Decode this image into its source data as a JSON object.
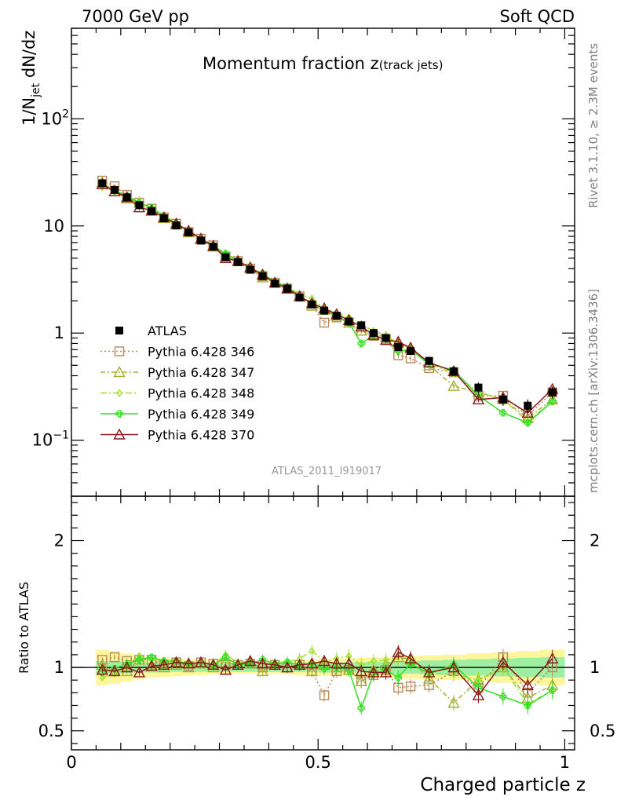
{
  "header": {
    "left": "7000 GeV pp",
    "right": "Soft QCD"
  },
  "side_text": {
    "top": "Rivet 3.1.10, ≥ 2.3M events",
    "bottom": "mcplots.cern.ch [arXiv:1306.3436]"
  },
  "chart_data": [
    {
      "type": "line",
      "title_main": "Momentum fraction z",
      "title_sub": "(track jets)",
      "ylabel_lead": "1/N",
      "ylabel_sub": "jet",
      "ylabel_tail": " dN/dz",
      "analysis_tag": "ATLAS_2011_I919017",
      "yscale": "log",
      "ylim": [
        0.03,
        700
      ],
      "xlim": [
        0,
        1.02
      ],
      "yticks": [
        {
          "value": 0.1,
          "base": "10",
          "exp": "−1"
        },
        {
          "value": 1,
          "base": "1",
          "exp": ""
        },
        {
          "value": 10,
          "base": "10",
          "exp": ""
        },
        {
          "value": 100,
          "base": "10",
          "exp": "2"
        }
      ],
      "legend_position": "left-middle",
      "x": [
        0.0625,
        0.0875,
        0.1125,
        0.1375,
        0.1625,
        0.1875,
        0.2125,
        0.2375,
        0.2625,
        0.2875,
        0.3125,
        0.3375,
        0.3625,
        0.3875,
        0.4125,
        0.4375,
        0.4625,
        0.4875,
        0.5125,
        0.5375,
        0.5625,
        0.5875,
        0.6125,
        0.6375,
        0.6625,
        0.6875,
        0.725,
        0.775,
        0.825,
        0.875,
        0.925,
        0.975
      ],
      "reference": {
        "name": "ATLAS",
        "color": "#000000",
        "values": [
          25.0,
          21.7,
          18.5,
          15.6,
          13.7,
          11.8,
          10.1,
          8.7,
          7.3,
          6.4,
          5.1,
          4.6,
          3.9,
          3.4,
          2.9,
          2.6,
          2.15,
          1.85,
          1.62,
          1.45,
          1.28,
          1.18,
          1.0,
          0.9,
          0.74,
          0.68,
          0.55,
          0.44,
          0.31,
          0.24,
          0.21,
          0.28
        ],
        "errors": [
          1.2,
          1.0,
          0.8,
          0.6,
          0.5,
          0.45,
          0.4,
          0.35,
          0.3,
          0.25,
          0.2,
          0.2,
          0.15,
          0.15,
          0.12,
          0.1,
          0.1,
          0.08,
          0.08,
          0.07,
          0.07,
          0.06,
          0.06,
          0.05,
          0.05,
          0.05,
          0.04,
          0.04,
          0.035,
          0.03,
          0.03,
          0.035
        ]
      },
      "series": [
        {
          "name": "Pythia 6.428 346",
          "color": "#b5895a",
          "marker": "square",
          "dash": "2,3",
          "values": [
            26.5,
            23.5,
            19.5,
            16.5,
            14.5,
            12.0,
            10.5,
            8.8,
            7.6,
            6.6,
            5.2,
            4.7,
            4.0,
            3.4,
            2.95,
            2.6,
            2.2,
            1.8,
            1.25,
            1.4,
            1.25,
            1.05,
            0.94,
            0.88,
            0.62,
            0.58,
            0.47,
            0.43,
            0.26,
            0.26,
            0.17,
            0.28
          ]
        },
        {
          "name": "Pythia 6.428 347",
          "color": "#a5b030",
          "marker": "triangle",
          "dash": "6,3,2,3",
          "values": [
            25.5,
            21.0,
            18.0,
            16.5,
            14.0,
            11.8,
            10.3,
            8.7,
            7.5,
            6.4,
            5.3,
            4.7,
            4.0,
            3.3,
            2.95,
            2.6,
            2.2,
            1.8,
            1.65,
            1.45,
            1.25,
            1.05,
            0.98,
            0.92,
            0.8,
            0.72,
            0.5,
            0.32,
            0.28,
            0.24,
            0.16,
            0.24
          ]
        },
        {
          "name": "Pythia 6.428 348",
          "color": "#9ee02e",
          "marker": "diamond",
          "dash": "8,3,2,3",
          "values": [
            23.0,
            20.5,
            18.5,
            17.0,
            14.5,
            12.3,
            10.5,
            9.0,
            7.6,
            6.5,
            5.6,
            4.8,
            4.1,
            3.5,
            3.0,
            2.7,
            2.3,
            2.1,
            1.7,
            1.55,
            1.4,
            1.2,
            1.05,
            0.95,
            0.8,
            0.73,
            0.52,
            0.42,
            0.28,
            0.24,
            0.15,
            0.23
          ]
        },
        {
          "name": "Pythia 6.428 349",
          "color": "#33dd22",
          "marker": "plus",
          "dash": "",
          "values": [
            24.0,
            21.5,
            19.0,
            16.5,
            14.8,
            12.4,
            10.6,
            9.0,
            7.6,
            6.5,
            5.5,
            4.7,
            4.0,
            3.6,
            3.0,
            2.7,
            2.2,
            1.9,
            1.6,
            1.45,
            1.25,
            0.8,
            0.95,
            0.88,
            0.68,
            0.7,
            0.52,
            0.45,
            0.26,
            0.18,
            0.145,
            0.23
          ]
        },
        {
          "name": "Pythia 6.428 370",
          "color": "#8b1a1a",
          "marker": "triangle",
          "dash": "",
          "values": [
            24.5,
            21.0,
            18.5,
            14.9,
            13.9,
            12.0,
            10.5,
            9.0,
            7.6,
            6.5,
            5.0,
            4.7,
            4.1,
            3.5,
            2.95,
            2.6,
            2.2,
            1.9,
            1.7,
            1.5,
            1.32,
            1.15,
            0.96,
            0.86,
            0.83,
            0.73,
            0.53,
            0.44,
            0.24,
            0.25,
            0.18,
            0.3
          ]
        }
      ]
    },
    {
      "type": "line",
      "ylabel": "Ratio to ATLAS",
      "ylim": [
        0.35,
        2.35
      ],
      "xlim": [
        0,
        1.02
      ],
      "xlabel": "Charged particle z",
      "yticks": [
        {
          "value": 0.5,
          "label": "0.5"
        },
        {
          "value": 1,
          "label": "1"
        },
        {
          "value": 2,
          "label": "2"
        }
      ],
      "xticks": [
        {
          "value": 0,
          "label": "0"
        },
        {
          "value": 0.5,
          "label": "0.5"
        },
        {
          "value": 1,
          "label": "1"
        }
      ],
      "band_inner_halfwidth": [
        0.05,
        0.05,
        0.045,
        0.04,
        0.04,
        0.038,
        0.035,
        0.035,
        0.035,
        0.035,
        0.035,
        0.035,
        0.035,
        0.035,
        0.035,
        0.035,
        0.035,
        0.035,
        0.04,
        0.04,
        0.04,
        0.04,
        0.045,
        0.045,
        0.05,
        0.05,
        0.055,
        0.06,
        0.065,
        0.07,
        0.075,
        0.08
      ],
      "band_outer_halfwidth": [
        0.14,
        0.13,
        0.11,
        0.09,
        0.08,
        0.075,
        0.07,
        0.065,
        0.06,
        0.055,
        0.05,
        0.05,
        0.05,
        0.05,
        0.05,
        0.055,
        0.06,
        0.06,
        0.065,
        0.07,
        0.07,
        0.075,
        0.08,
        0.08,
        0.085,
        0.09,
        0.095,
        0.1,
        0.11,
        0.12,
        0.13,
        0.14
      ],
      "series_ratios": [
        {
          "name": "Pythia 6.428 346",
          "values": [
            1.06,
            1.08,
            1.05,
            1.06,
            1.06,
            1.02,
            1.04,
            1.01,
            1.04,
            1.03,
            1.02,
            1.02,
            1.03,
            1.0,
            1.02,
            1.0,
            1.02,
            0.97,
            0.78,
            0.97,
            0.98,
            0.89,
            0.94,
            0.98,
            0.84,
            0.85,
            0.86,
            0.97,
            0.84,
            1.08,
            0.8,
            1.0
          ]
        },
        {
          "name": "Pythia 6.428 347",
          "values": [
            1.02,
            0.97,
            0.97,
            1.06,
            1.02,
            1.0,
            1.02,
            1.0,
            1.03,
            1.0,
            1.04,
            1.02,
            1.03,
            0.97,
            1.02,
            1.0,
            1.02,
            0.97,
            1.02,
            1.0,
            0.98,
            0.89,
            0.98,
            1.02,
            1.08,
            1.06,
            0.91,
            0.72,
            0.9,
            1.0,
            0.76,
            0.86
          ]
        },
        {
          "name": "Pythia 6.428 348",
          "values": [
            0.92,
            0.95,
            1.0,
            1.09,
            1.06,
            1.04,
            1.04,
            1.03,
            1.04,
            1.02,
            1.1,
            1.04,
            1.05,
            1.03,
            1.03,
            1.04,
            1.07,
            1.13,
            1.05,
            1.07,
            1.09,
            1.02,
            1.05,
            1.06,
            1.08,
            1.07,
            0.95,
            0.95,
            0.9,
            1.0,
            0.71,
            0.82
          ]
        },
        {
          "name": "Pythia 6.428 349",
          "values": [
            0.96,
            0.99,
            1.03,
            1.06,
            1.08,
            1.05,
            1.05,
            1.03,
            1.04,
            1.02,
            1.08,
            1.02,
            1.03,
            1.06,
            1.03,
            1.04,
            1.02,
            1.03,
            0.99,
            1.0,
            0.98,
            0.68,
            0.95,
            0.98,
            0.92,
            1.03,
            0.95,
            1.02,
            0.84,
            0.77,
            0.7,
            0.82
          ]
        },
        {
          "name": "Pythia 6.428 370",
          "values": [
            0.98,
            0.97,
            1.0,
            0.96,
            1.01,
            1.02,
            1.04,
            1.03,
            1.04,
            1.02,
            0.98,
            1.02,
            1.05,
            1.03,
            1.02,
            1.0,
            1.02,
            1.03,
            1.05,
            1.03,
            1.03,
            0.97,
            0.96,
            0.96,
            1.12,
            1.07,
            0.96,
            1.0,
            0.78,
            1.04,
            0.86,
            1.07
          ]
        }
      ]
    }
  ]
}
